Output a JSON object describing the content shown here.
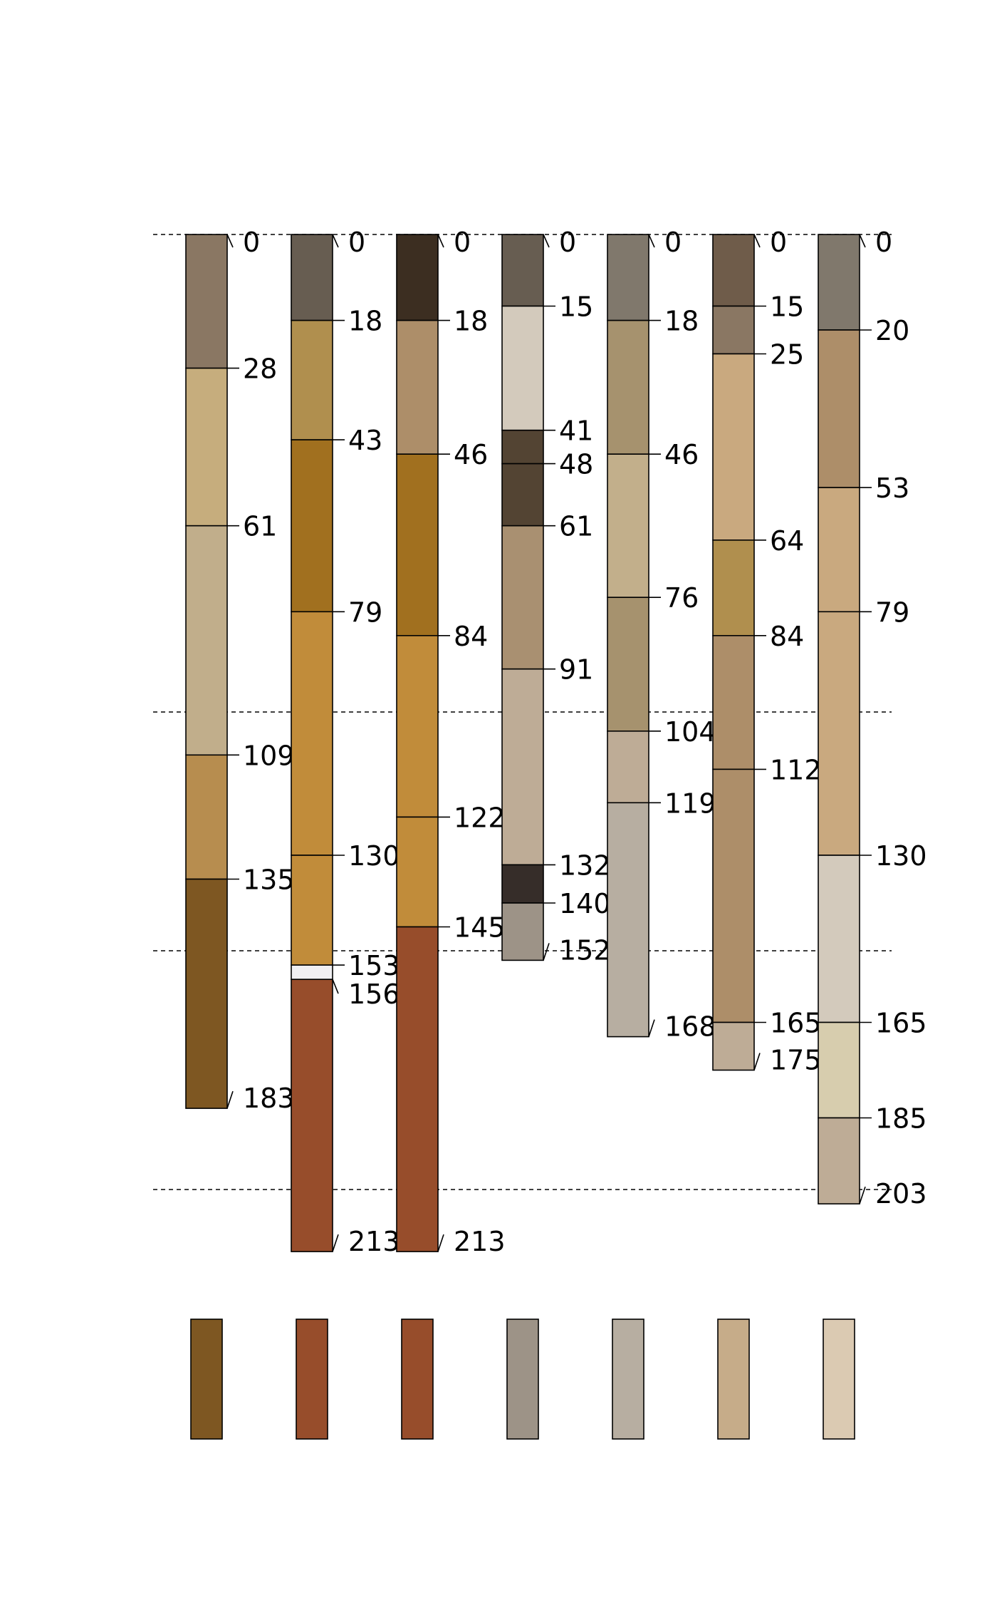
{
  "profiles": [
    {
      "id": "p1",
      "layers": [
        {
          "top": 0,
          "bottom": 28,
          "color": "#8A7763"
        },
        {
          "top": 28,
          "bottom": 61,
          "color": "#C6AD7D"
        },
        {
          "top": 61,
          "bottom": 109,
          "color": "#C1AE8B"
        },
        {
          "top": 109,
          "bottom": 135,
          "color": "#B78D4F"
        },
        {
          "top": 135,
          "bottom": 183,
          "color": "#7E5722"
        }
      ],
      "depth_labels": [
        "0",
        "28",
        "61",
        "109",
        "135",
        "183"
      ],
      "swatch_color": "#7E5722"
    },
    {
      "id": "p2",
      "layers": [
        {
          "top": 0,
          "bottom": 18,
          "color": "#675D51"
        },
        {
          "top": 18,
          "bottom": 43,
          "color": "#B08F4E"
        },
        {
          "top": 43,
          "bottom": 79,
          "color": "#A1701F"
        },
        {
          "top": 79,
          "bottom": 130,
          "color": "#C18C3A"
        },
        {
          "top": 130,
          "bottom": 153,
          "color": "#C18C3A"
        },
        {
          "top": 153,
          "bottom": 156,
          "color": "#F0EFF2"
        },
        {
          "top": 156,
          "bottom": 213,
          "color": "#974D2B"
        }
      ],
      "depth_labels": [
        "0",
        "18",
        "43",
        "79",
        "130",
        "153",
        "156",
        "213"
      ],
      "swatch_color": "#974D2B"
    },
    {
      "id": "p3",
      "layers": [
        {
          "top": 0,
          "bottom": 18,
          "color": "#3C2E21"
        },
        {
          "top": 18,
          "bottom": 46,
          "color": "#AD8E69"
        },
        {
          "top": 46,
          "bottom": 84,
          "color": "#A1701F"
        },
        {
          "top": 84,
          "bottom": 122,
          "color": "#C18C3A"
        },
        {
          "top": 122,
          "bottom": 145,
          "color": "#C18C3A"
        },
        {
          "top": 145,
          "bottom": 213,
          "color": "#974D2B"
        }
      ],
      "depth_labels": [
        "0",
        "18",
        "46",
        "84",
        "122",
        "145",
        "213"
      ],
      "swatch_color": "#974D2B"
    },
    {
      "id": "p4",
      "layers": [
        {
          "top": 0,
          "bottom": 15,
          "color": "#675D51"
        },
        {
          "top": 15,
          "bottom": 41,
          "color": "#D3CABC"
        },
        {
          "top": 41,
          "bottom": 48,
          "color": "#534433"
        },
        {
          "top": 48,
          "bottom": 61,
          "color": "#534433"
        },
        {
          "top": 61,
          "bottom": 91,
          "color": "#A99071"
        },
        {
          "top": 91,
          "bottom": 132,
          "color": "#BEAC96"
        },
        {
          "top": 132,
          "bottom": 140,
          "color": "#362D29"
        },
        {
          "top": 140,
          "bottom": 152,
          "color": "#9D9387"
        }
      ],
      "depth_labels": [
        "0",
        "15",
        "41",
        "48",
        "61",
        "91",
        "132",
        "140",
        "152"
      ],
      "swatch_color": "#9D9387"
    },
    {
      "id": "p5",
      "layers": [
        {
          "top": 0,
          "bottom": 18,
          "color": "#80786C"
        },
        {
          "top": 18,
          "bottom": 46,
          "color": "#A6926E"
        },
        {
          "top": 46,
          "bottom": 76,
          "color": "#C2AF8B"
        },
        {
          "top": 76,
          "bottom": 104,
          "color": "#A6926E"
        },
        {
          "top": 104,
          "bottom": 119,
          "color": "#BEAC96"
        },
        {
          "top": 119,
          "bottom": 168,
          "color": "#B7AEA1"
        }
      ],
      "depth_labels": [
        "0",
        "18",
        "46",
        "76",
        "104",
        "119",
        "168"
      ],
      "swatch_color": "#B7AEA1"
    },
    {
      "id": "p6",
      "layers": [
        {
          "top": 0,
          "bottom": 15,
          "color": "#6F5C4A"
        },
        {
          "top": 15,
          "bottom": 25,
          "color": "#8A7763"
        },
        {
          "top": 25,
          "bottom": 64,
          "color": "#C9A97F"
        },
        {
          "top": 64,
          "bottom": 84,
          "color": "#B08F4E"
        },
        {
          "top": 84,
          "bottom": 112,
          "color": "#AD8E69"
        },
        {
          "top": 112,
          "bottom": 165,
          "color": "#AD8E69"
        },
        {
          "top": 165,
          "bottom": 175,
          "color": "#BEAC96"
        }
      ],
      "depth_labels": [
        "0",
        "15",
        "25",
        "64",
        "84",
        "112",
        "165",
        "175"
      ],
      "swatch_color": "#C6AC89"
    },
    {
      "id": "p7",
      "layers": [
        {
          "top": 0,
          "bottom": 20,
          "color": "#80786C"
        },
        {
          "top": 20,
          "bottom": 53,
          "color": "#AD8E69"
        },
        {
          "top": 53,
          "bottom": 79,
          "color": "#C9A97F"
        },
        {
          "top": 79,
          "bottom": 130,
          "color": "#C9A97F"
        },
        {
          "top": 130,
          "bottom": 165,
          "color": "#D3CABC"
        },
        {
          "top": 165,
          "bottom": 185,
          "color": "#D7CDAE"
        },
        {
          "top": 185,
          "bottom": 203,
          "color": "#BEAC96"
        }
      ],
      "depth_labels": [
        "0",
        "20",
        "53",
        "79",
        "130",
        "165",
        "185",
        "203"
      ],
      "swatch_color": "#DBCAB2"
    }
  ],
  "reference_depths": [
    0,
    100,
    150,
    200
  ]
}
